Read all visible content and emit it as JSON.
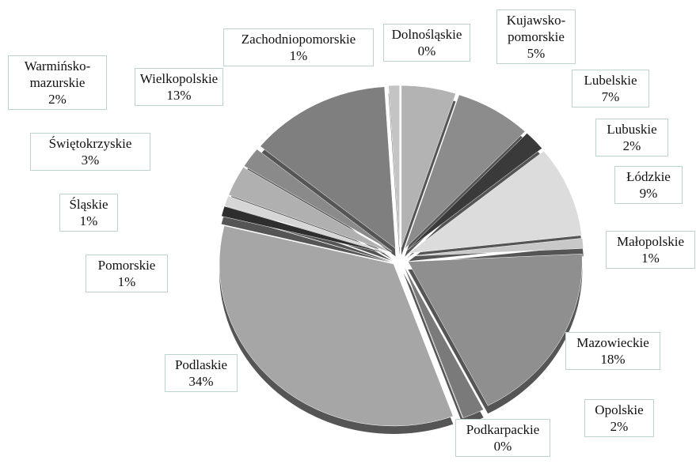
{
  "chart_data": {
    "type": "pie",
    "categories": [
      "Dolnośląskie",
      "Kujawsko-pomorskie",
      "Lubelskie",
      "Lubuskie",
      "Łódzkie",
      "Małopolskie",
      "Mazowieckie",
      "Opolskie",
      "Podkarpackie",
      "Podlaskie",
      "Pomorskie",
      "Śląskie",
      "Świętokrzyskie",
      "Warmińsko-mazurskie",
      "Wielkopolskie",
      "Zachodniopomorskie"
    ],
    "values": [
      0,
      5,
      7,
      2,
      9,
      1,
      18,
      2,
      0,
      34,
      1,
      1,
      3,
      2,
      13,
      1
    ],
    "value_labels": [
      "0%",
      "5%",
      "7%",
      "2%",
      "9%",
      "1%",
      "18%",
      "2%",
      "0%",
      "34%",
      "1%",
      "1%",
      "3%",
      "2%",
      "13%",
      "1%"
    ],
    "colors": [
      "#bdbdbd",
      "#b3b3b3",
      "#8c8c8c",
      "#3a3a3a",
      "#dcdcdc",
      "#c8c8c8",
      "#8f8f8f",
      "#7a7a7a",
      "#d0d0d0",
      "#a6a6a6",
      "#2e2e2e",
      "#d6d6d6",
      "#b0b0b0",
      "#8a8a8a",
      "#7f7f7f",
      "#c4c4c4"
    ]
  }
}
